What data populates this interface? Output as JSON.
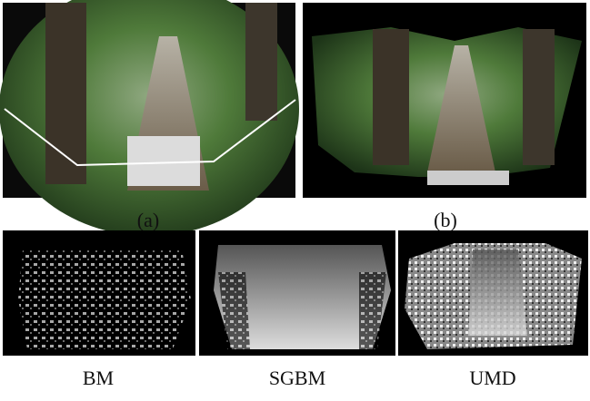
{
  "figure": {
    "top_row": [
      {
        "caption": "(a)"
      },
      {
        "caption": "(b)"
      }
    ],
    "bottom_row": [
      {
        "caption": "BM"
      },
      {
        "caption": "SGBM"
      },
      {
        "caption": "UMD"
      }
    ]
  }
}
